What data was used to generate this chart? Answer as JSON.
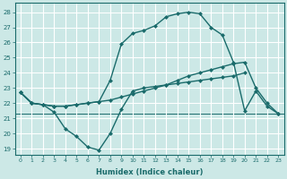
{
  "xlabel": "Humidex (Indice chaleur)",
  "bg_color": "#cce8e6",
  "grid_color": "#ffffff",
  "line_color": "#1a6b6b",
  "figsize": [
    3.2,
    2.0
  ],
  "dpi": 100,
  "yticks": [
    19,
    20,
    21,
    22,
    23,
    24,
    25,
    26,
    27,
    28
  ],
  "xticks": [
    0,
    1,
    2,
    3,
    4,
    5,
    6,
    7,
    8,
    9,
    10,
    11,
    12,
    13,
    14,
    15,
    16,
    17,
    18,
    19,
    20,
    21,
    22,
    23
  ],
  "line1_x": [
    0,
    1,
    2,
    3,
    4,
    5,
    6,
    7,
    8,
    9,
    10,
    11,
    12,
    13,
    14,
    15,
    16,
    17,
    18,
    19,
    20
  ],
  "line1_y": [
    22.7,
    22.0,
    21.9,
    21.4,
    20.3,
    19.8,
    19.1,
    18.9,
    20.0,
    21.6,
    22.8,
    23.0,
    23.1,
    23.2,
    23.3,
    23.4,
    23.5,
    23.6,
    23.7,
    23.8,
    24.0
  ],
  "line2_x": [
    0,
    1,
    2,
    3,
    4,
    5,
    6,
    7,
    8,
    9,
    10,
    11,
    12,
    13,
    14,
    15,
    16,
    17,
    18,
    19,
    20,
    21,
    22,
    23
  ],
  "line2_y": [
    22.7,
    22.0,
    21.9,
    21.8,
    21.8,
    21.9,
    22.0,
    22.1,
    22.2,
    22.4,
    22.6,
    22.8,
    23.0,
    23.2,
    23.5,
    23.8,
    24.0,
    24.2,
    24.4,
    24.6,
    24.7,
    23.0,
    22.0,
    21.3
  ],
  "line3_x": [
    0,
    1,
    2,
    3,
    4,
    5,
    6,
    7,
    8,
    9,
    10,
    11,
    12,
    13,
    14,
    15,
    16,
    17,
    18,
    19,
    20,
    21,
    22,
    23
  ],
  "line3_y": [
    22.7,
    22.0,
    21.9,
    21.8,
    21.8,
    21.9,
    22.0,
    22.1,
    23.5,
    25.9,
    26.6,
    26.8,
    27.1,
    27.7,
    27.9,
    28.0,
    27.9,
    27.0,
    26.5,
    24.7,
    21.5,
    22.8,
    21.8,
    21.3
  ],
  "hline_y": 21.3,
  "marker_size": 2.5,
  "line_width": 1.0
}
